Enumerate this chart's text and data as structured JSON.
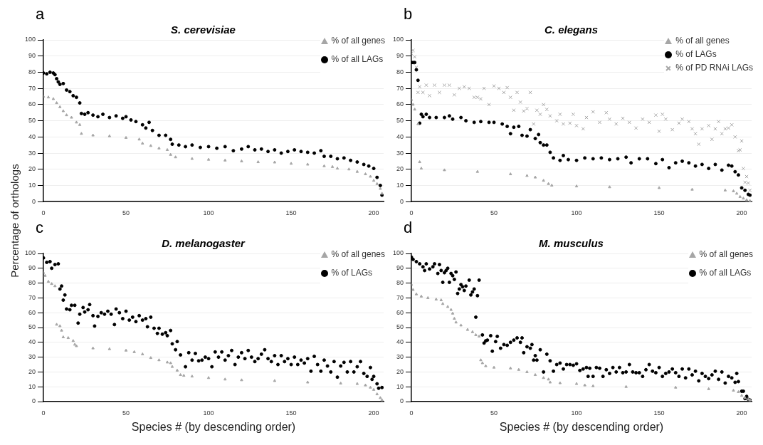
{
  "chart_data": [
    {
      "type": "scatter",
      "title": "S. cerevisiae",
      "ylabel": "Percentage of orthologs",
      "annotations": [
        "a"
      ],
      "xlim": [
        0,
        206
      ],
      "xticks": [
        0,
        50,
        100,
        150,
        200
      ],
      "ylim": [
        0,
        100
      ],
      "yticks": [
        0,
        10,
        20,
        30,
        40,
        50,
        60,
        70,
        80,
        90,
        100
      ],
      "grid": "y",
      "legend": "top right",
      "series": [
        {
          "name": "% of all genes",
          "color": "#a6a6a6",
          "marker": "triangle",
          "x": [
            0,
            3,
            6,
            8,
            10,
            12,
            14,
            17,
            20,
            22,
            23,
            30,
            40,
            50,
            58,
            60,
            65,
            70,
            75,
            77,
            80,
            90,
            100,
            110,
            120,
            130,
            140,
            150,
            160,
            170,
            175,
            178,
            185,
            190,
            195,
            198,
            200,
            202,
            204,
            205
          ],
          "values": [
            65,
            64.5,
            63.5,
            61,
            58.5,
            56,
            53.5,
            52,
            49,
            47.5,
            42,
            41,
            40.5,
            39.5,
            38.5,
            36,
            34.5,
            33,
            32,
            29,
            27.5,
            26.5,
            26,
            25.5,
            25,
            24.5,
            24.3,
            23.5,
            23,
            22,
            21.5,
            20.5,
            20,
            18.5,
            17,
            15.5,
            13,
            11,
            8,
            5
          ]
        },
        {
          "name": "% of all LAGs",
          "color": "#000000",
          "marker": "circle",
          "x": [
            0,
            2,
            4,
            6,
            7,
            8,
            9,
            10,
            12,
            14,
            16,
            18,
            20,
            22,
            23,
            25,
            27,
            30,
            33,
            36,
            40,
            44,
            48,
            50,
            53,
            56,
            60,
            62,
            64,
            66,
            70,
            74,
            77,
            78,
            82,
            86,
            90,
            95,
            100,
            105,
            110,
            115,
            120,
            124,
            128,
            132,
            136,
            140,
            144,
            148,
            152,
            156,
            160,
            164,
            168,
            170,
            174,
            178,
            182,
            186,
            190,
            194,
            197,
            200,
            202,
            204,
            205
          ],
          "values": [
            79.5,
            79,
            80,
            79.5,
            78.5,
            76,
            74,
            72.5,
            73,
            69,
            68,
            65.5,
            64.5,
            61,
            54.5,
            54,
            55,
            53.5,
            52.5,
            54,
            52,
            53,
            51.5,
            52.5,
            50.5,
            49.5,
            47.5,
            45.5,
            49,
            44,
            41,
            41,
            38.5,
            35.5,
            35,
            34,
            35,
            33.5,
            34,
            33,
            34,
            31.5,
            32.5,
            34,
            32,
            32.5,
            31,
            32,
            30,
            31,
            32,
            31,
            30.5,
            30,
            31.5,
            28,
            28,
            26.5,
            27,
            25.5,
            24.5,
            23,
            22,
            20.5,
            15,
            10,
            4
          ]
        }
      ]
    },
    {
      "type": "scatter",
      "title": "C. elegans",
      "annotations": [
        "b"
      ],
      "xlim": [
        0,
        206
      ],
      "xticks": [
        0,
        50,
        100,
        150,
        200
      ],
      "ylim": [
        0,
        100
      ],
      "yticks": [
        0,
        10,
        20,
        30,
        40,
        50,
        60,
        70,
        80,
        90,
        100
      ],
      "grid": "y",
      "legend": "top right",
      "series": [
        {
          "name": "% of all genes",
          "color": "#a6a6a6",
          "marker": "triangle",
          "x": [
            0,
            1,
            2,
            4,
            5,
            6,
            20,
            40,
            60,
            70,
            75,
            80,
            83,
            85,
            100,
            120,
            150,
            170,
            190,
            195,
            197,
            199,
            201,
            203,
            205
          ],
          "values": [
            63,
            60,
            57,
            48,
            24.5,
            20.5,
            19.5,
            18.5,
            17,
            16,
            15,
            13,
            11,
            10,
            9.5,
            9,
            8.5,
            7.5,
            7,
            6.5,
            5,
            3,
            2,
            1,
            0.5
          ]
        },
        {
          "name": "% of LAGs",
          "color": "#000000",
          "marker": "circle",
          "x": [
            0,
            1,
            2,
            3,
            4,
            5,
            6,
            7,
            9,
            11,
            15,
            20,
            23,
            25,
            30,
            33,
            38,
            42,
            47,
            50,
            55,
            58,
            60,
            62,
            65,
            67,
            70,
            72,
            75,
            77,
            78,
            80,
            82,
            84,
            86,
            90,
            92,
            95,
            100,
            105,
            110,
            115,
            120,
            125,
            130,
            133,
            138,
            143,
            148,
            152,
            156,
            160,
            164,
            168,
            172,
            176,
            180,
            184,
            188,
            192,
            194,
            196,
            198,
            200,
            202,
            204,
            205
          ],
          "values": [
            86,
            86,
            86,
            81.5,
            75,
            48.5,
            54,
            52.5,
            54,
            52,
            52,
            52,
            53,
            51,
            52,
            50,
            49,
            49.5,
            49,
            49,
            48,
            46.5,
            42,
            46,
            46.5,
            41,
            40.5,
            44.5,
            39,
            41.5,
            36.5,
            35,
            35,
            30.5,
            27,
            25.5,
            28.5,
            26,
            25.5,
            27,
            26.5,
            27,
            26,
            26.5,
            27.5,
            24,
            26.5,
            26.5,
            23.5,
            26,
            21,
            24,
            25,
            24,
            22,
            23,
            20.5,
            23,
            19.5,
            22.5,
            22,
            18.5,
            16.5,
            8.5,
            7,
            4.5,
            4
          ]
        },
        {
          "name": "% of PD RNAi LAGs",
          "color": "#a6a6a6",
          "marker": "cross",
          "x": [
            0,
            1,
            2,
            3,
            4,
            5,
            7,
            9,
            11,
            14,
            17,
            20,
            23,
            26,
            29,
            32,
            35,
            38,
            40,
            42,
            44,
            47,
            50,
            53,
            56,
            58,
            60,
            62,
            64,
            66,
            68,
            70,
            72,
            74,
            76,
            78,
            80,
            82,
            84,
            88,
            90,
            92,
            96,
            98,
            100,
            104,
            106,
            110,
            114,
            118,
            120,
            124,
            128,
            132,
            136,
            140,
            144,
            148,
            150,
            152,
            154,
            158,
            162,
            164,
            168,
            170,
            172,
            174,
            176,
            180,
            182,
            184,
            186,
            188,
            190,
            192,
            194,
            196,
            198,
            199,
            200,
            201,
            202,
            203,
            204,
            205
          ],
          "values": [
            91.5,
            93.5,
            89.5,
            83,
            67.5,
            71,
            67.5,
            72,
            65.5,
            72,
            67.5,
            72,
            72,
            66,
            70,
            71,
            70,
            64.5,
            64.5,
            63.5,
            70,
            60,
            71.5,
            70,
            67.5,
            70.5,
            64.5,
            56.5,
            67.5,
            61.5,
            56,
            57.5,
            67.5,
            48,
            56.5,
            54,
            60,
            57,
            53,
            50,
            54,
            48,
            48.5,
            54,
            47,
            45,
            52,
            55.5,
            49,
            55,
            51,
            48,
            51.5,
            49,
            45.5,
            51,
            49,
            53.5,
            43.5,
            54,
            51,
            44.5,
            48.5,
            51,
            49.5,
            45,
            42,
            35.5,
            45,
            47,
            38.5,
            45,
            49.5,
            42,
            45,
            45.5,
            47.5,
            40,
            31.5,
            32,
            37.5,
            20.5,
            12,
            15.5,
            11.5,
            7
          ]
        }
      ]
    },
    {
      "type": "scatter",
      "title": "D. melanogaster",
      "xlabel": "Species # (by descending order)",
      "annotations": [
        "c"
      ],
      "xlim": [
        0,
        206
      ],
      "xticks": [
        0,
        50,
        100,
        150,
        200
      ],
      "ylim": [
        0,
        100
      ],
      "yticks": [
        0,
        10,
        20,
        30,
        40,
        50,
        60,
        70,
        80,
        90,
        100
      ],
      "grid": "y",
      "legend": "top right",
      "series": [
        {
          "name": "% of all genes",
          "color": "#a6a6a6",
          "marker": "triangle",
          "x": [
            0,
            1,
            3,
            5,
            7,
            8,
            10,
            11,
            12,
            15,
            18,
            19,
            20,
            30,
            40,
            50,
            55,
            60,
            65,
            70,
            75,
            77,
            78,
            81,
            83,
            85,
            90,
            100,
            110,
            120,
            140,
            160,
            180,
            190,
            195,
            198,
            200,
            202,
            204,
            205
          ],
          "values": [
            87,
            85,
            81,
            79.5,
            78,
            52,
            51,
            48,
            43.5,
            43,
            41,
            38.5,
            37.5,
            36,
            35.5,
            34.5,
            33.5,
            32,
            29.5,
            28,
            26.5,
            26,
            23.5,
            21,
            18,
            17.5,
            17,
            16,
            15,
            14.5,
            14,
            13,
            12.3,
            12,
            11,
            9.5,
            8,
            5,
            2.5,
            1
          ]
        },
        {
          "name": "% of LAGs",
          "color": "#000000",
          "marker": "circle",
          "x": [
            0,
            2,
            4,
            5,
            7,
            9,
            10,
            11,
            12,
            13,
            14,
            16,
            17,
            19,
            21,
            22,
            24,
            25,
            27,
            28,
            30,
            31,
            33,
            35,
            37,
            39,
            41,
            43,
            44,
            46,
            48,
            50,
            52,
            54,
            56,
            58,
            60,
            62,
            63,
            65,
            67,
            69,
            70,
            72,
            74,
            75,
            77,
            78,
            80,
            81,
            83,
            86,
            88,
            90,
            92,
            94,
            96,
            98,
            100,
            102,
            104,
            106,
            108,
            110,
            112,
            114,
            116,
            118,
            120,
            122,
            124,
            126,
            128,
            130,
            132,
            134,
            136,
            138,
            140,
            142,
            144,
            146,
            148,
            150,
            152,
            154,
            156,
            158,
            160,
            162,
            164,
            166,
            168,
            170,
            172,
            174,
            176,
            178,
            180,
            182,
            184,
            186,
            188,
            190,
            192,
            194,
            196,
            198,
            199,
            200,
            202,
            203,
            205
          ],
          "values": [
            97,
            94,
            94.5,
            90,
            92.5,
            93,
            76,
            78,
            68.5,
            72,
            62.5,
            62,
            65,
            65,
            53,
            59,
            63.5,
            60.5,
            62,
            65.5,
            58,
            51,
            57.5,
            60,
            59,
            61,
            59,
            52,
            62.5,
            60,
            56,
            61,
            55,
            57,
            54,
            58,
            55,
            56,
            50.5,
            57,
            49.5,
            46,
            49.5,
            45.5,
            46.5,
            44.5,
            48,
            39,
            35,
            40.5,
            31.5,
            23.5,
            33,
            28,
            32.5,
            27.5,
            28,
            30,
            29,
            23.5,
            33.5,
            30,
            33.5,
            28,
            31,
            34.5,
            25,
            30,
            33,
            29,
            34.5,
            30,
            27,
            29,
            32,
            35,
            29,
            27,
            31,
            25,
            31,
            27,
            29,
            25,
            30,
            25,
            28,
            26,
            29,
            20.5,
            30.5,
            25,
            20.5,
            28,
            24,
            20,
            27,
            16.5,
            24,
            26.5,
            20,
            27,
            20,
            23.5,
            27,
            19,
            17,
            23,
            15,
            17,
            12,
            9,
            9.5
          ]
        }
      ]
    },
    {
      "type": "scatter",
      "title": "M. musculus",
      "xlabel": "Species # (by descending order)",
      "annotations": [
        "d"
      ],
      "xlim": [
        0,
        206
      ],
      "xticks": [
        0,
        50,
        100,
        150,
        200
      ],
      "ylim": [
        0,
        100
      ],
      "yticks": [
        0,
        10,
        20,
        30,
        40,
        50,
        60,
        70,
        80,
        90,
        100
      ],
      "grid": "y",
      "legend": "top right",
      "series": [
        {
          "name": "% of all genes",
          "color": "#a6a6a6",
          "marker": "triangle",
          "x": [
            0,
            1,
            3,
            6,
            10,
            15,
            18,
            19,
            22,
            24,
            25,
            26,
            27,
            30,
            34,
            37,
            39,
            41,
            42,
            43,
            45,
            50,
            60,
            65,
            70,
            75,
            80,
            83,
            84,
            90,
            100,
            105,
            110,
            130,
            160,
            180,
            195,
            198,
            200,
            202,
            204,
            205
          ],
          "values": [
            79,
            75.5,
            72.5,
            71,
            70,
            69,
            68.5,
            66,
            64,
            62,
            59.5,
            56,
            53.5,
            51.5,
            48.5,
            47,
            45,
            44,
            28,
            26,
            24,
            23,
            22.5,
            21.5,
            20,
            18,
            16,
            15,
            13,
            12.5,
            12,
            11,
            10.5,
            10,
            9.5,
            8.5,
            7.5,
            6.5,
            4,
            2.5,
            1.5,
            1
          ]
        },
        {
          "name": "% of all LAGs",
          "color": "#000000",
          "marker": "circle",
          "x": [
            0,
            1,
            3,
            5,
            7,
            8,
            9,
            11,
            13,
            14,
            16,
            17,
            18,
            19,
            20,
            21,
            22,
            23,
            24,
            25,
            26,
            27,
            28,
            29,
            30,
            31,
            32,
            33,
            35,
            36,
            37,
            38,
            39,
            40,
            41,
            43,
            44,
            45,
            46,
            48,
            49,
            51,
            52,
            54,
            56,
            58,
            60,
            62,
            64,
            66,
            67,
            68,
            70,
            72,
            73,
            74,
            75,
            76,
            78,
            80,
            82,
            84,
            86,
            88,
            90,
            92,
            94,
            96,
            98,
            100,
            102,
            104,
            106,
            107,
            108,
            110,
            112,
            114,
            116,
            118,
            120,
            122,
            124,
            126,
            128,
            130,
            132,
            134,
            136,
            138,
            140,
            142,
            144,
            146,
            148,
            150,
            152,
            154,
            156,
            158,
            160,
            162,
            164,
            166,
            168,
            170,
            172,
            174,
            176,
            178,
            180,
            182,
            184,
            186,
            188,
            190,
            192,
            194,
            196,
            197,
            198,
            200,
            201,
            202,
            203,
            204,
            205
          ],
          "values": [
            97.5,
            96,
            94.5,
            93,
            91,
            88.5,
            93,
            89.5,
            91,
            93,
            86.5,
            92.5,
            88.5,
            80.5,
            87,
            88.5,
            90,
            80.5,
            86.5,
            85,
            82.5,
            87.5,
            73,
            76,
            79,
            77.5,
            75,
            78,
            82,
            72,
            74,
            76,
            57,
            71.5,
            82,
            45,
            39.5,
            41,
            41.5,
            44.5,
            34,
            40.5,
            44,
            36,
            38.5,
            38,
            40,
            41.5,
            43,
            40,
            43,
            33,
            37,
            36,
            38.5,
            28,
            31,
            28,
            35,
            20,
            32,
            27.5,
            20.5,
            25,
            26,
            22,
            25,
            25,
            24.5,
            25.5,
            21,
            22,
            23,
            17,
            22.5,
            17,
            23,
            22.5,
            17,
            21.5,
            19,
            23,
            20,
            23,
            19.5,
            20,
            25,
            20,
            19.5,
            19.5,
            17,
            21.5,
            25,
            20.5,
            19.5,
            23,
            17,
            19,
            20,
            22,
            19.5,
            17,
            22,
            16,
            22,
            18,
            20.5,
            14,
            19,
            17,
            15.5,
            18,
            20.5,
            15,
            20,
            12.5,
            17,
            16,
            13,
            19,
            13.5,
            7,
            7,
            2,
            3.5,
            1.5,
            1
          ]
        }
      ]
    }
  ]
}
